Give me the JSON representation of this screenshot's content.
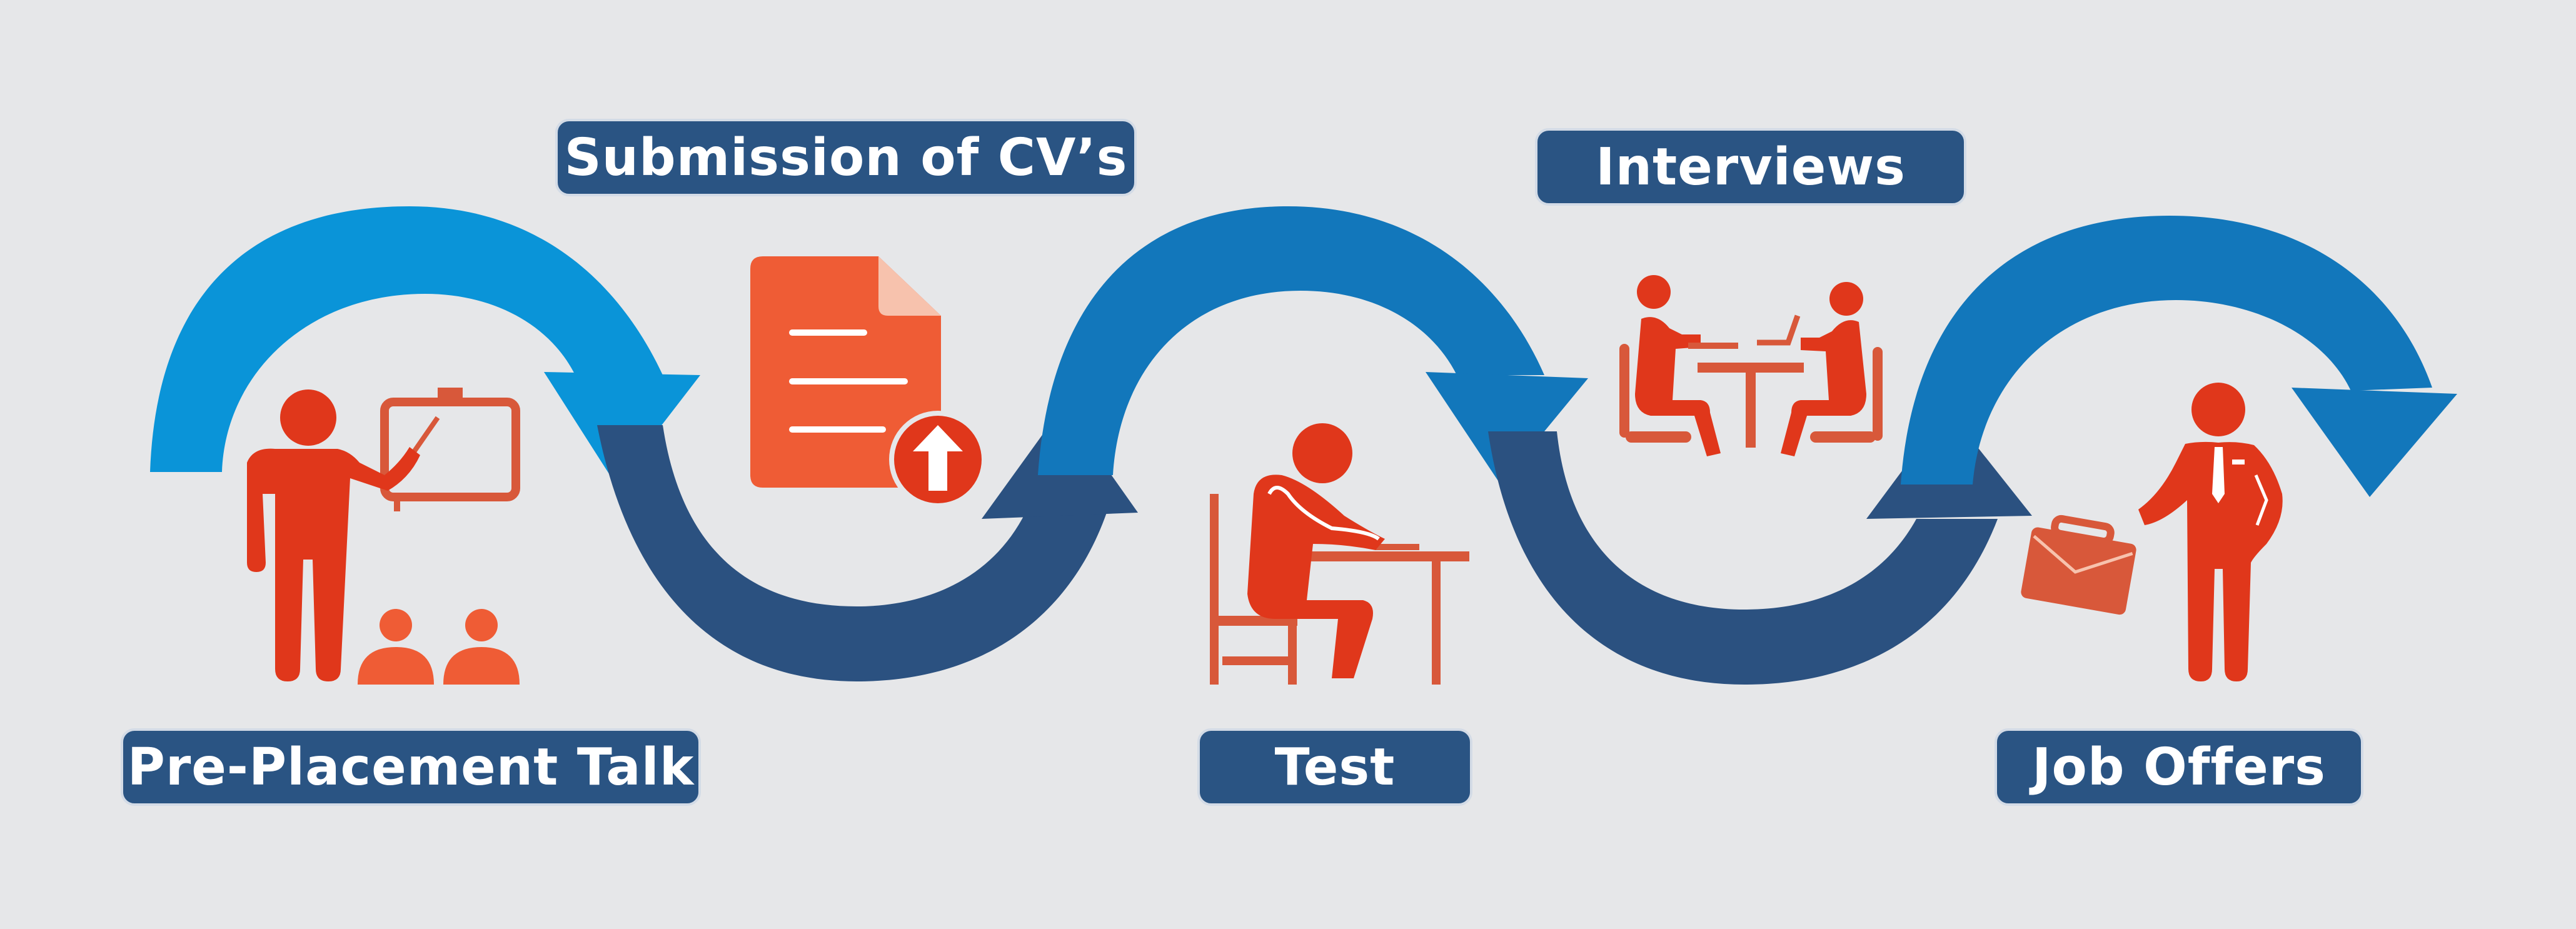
{
  "colors": {
    "background": "#e6e7e9",
    "arrow_light": "#0a94d8",
    "arrow_mid": "#1277bb",
    "arrow_dark": "#2b5180",
    "icon_red": "#e0371b",
    "icon_orange": "#ef5c35",
    "label_bg": "#2a5483"
  },
  "steps": [
    {
      "label": "Submission of CV’s",
      "icon": "document-upload-icon"
    },
    {
      "label": "Interviews",
      "icon": "interview-table-icon"
    },
    {
      "label": "Pre-Placement Talk",
      "icon": "presenter-whiteboard-icon"
    },
    {
      "label": "Test",
      "icon": "person-writing-test-icon"
    },
    {
      "label": "Job Offers",
      "icon": "businessman-briefcase-icon"
    }
  ]
}
